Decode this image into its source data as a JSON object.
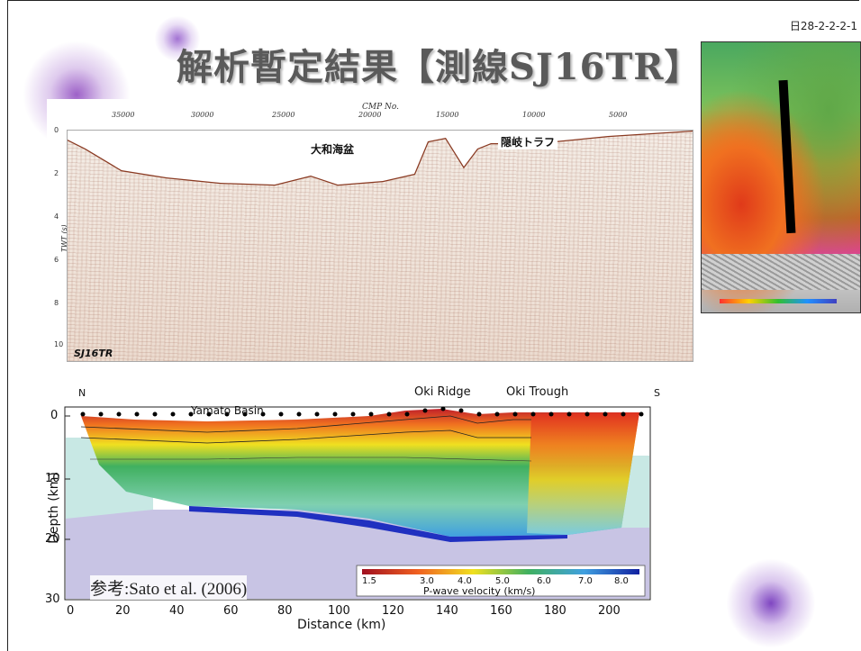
{
  "document_id": "日28-2-2-2-1",
  "title": "解析暫定結果【測線SJ16TR】",
  "seismic": {
    "cmp_label": "CMP No.",
    "cmp_ticks": [
      "35000",
      "30000",
      "25000",
      "20000",
      "15000",
      "10000",
      "5000"
    ],
    "twt_label": "TWT (s)",
    "twt_ticks": [
      "0",
      "2",
      "4",
      "6",
      "8",
      "10"
    ],
    "label_basin": "大和海盆",
    "label_trough": "隠岐トラフ",
    "line_id": "SJ16TR"
  },
  "velocity_section": {
    "north": "N",
    "south": "S",
    "label_basin": "Yamato Basin",
    "label_ridge": "Oki Ridge",
    "label_trough": "Oki Trough",
    "ylabel": "Depth (km)",
    "xlabel": "Distance (km)",
    "y_ticks": [
      "0",
      "10",
      "20",
      "30"
    ],
    "x_ticks": [
      "0",
      "20",
      "40",
      "60",
      "80",
      "100",
      "120",
      "140",
      "160",
      "180",
      "200"
    ],
    "colorbar_ticks": [
      "1.5",
      "3.0",
      "4.0",
      "5.0",
      "6.0",
      "7.0",
      "8.0"
    ],
    "colorbar_label": "P-wave velocity (km/s)",
    "reference_prefix": "参考",
    "reference": ":Sato et al. (2006)"
  },
  "colors": {
    "title": "#5a5a5a",
    "velocity_low": "#c0202a",
    "velocity_mid": "#f0e020",
    "velocity_high": "#2030c0",
    "seismic_trace": "#9a4a30"
  }
}
